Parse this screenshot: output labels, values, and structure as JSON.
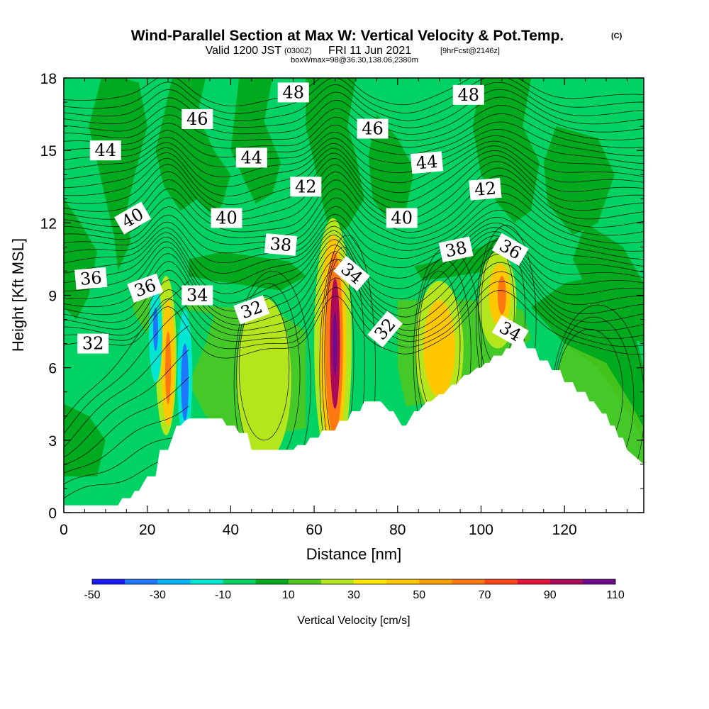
{
  "title": {
    "main": "Wind-Parallel Section at Max W: Vertical Velocity & Pot.Temp.",
    "copyright": "(C)",
    "valid_prefix": "Valid 1200 JST",
    "utc": "(0300Z)",
    "valid_date": "FRI 11 Jun 2021",
    "forecast": "[9hrFcst@2146z]",
    "boxwmax": "boxWmax=98@36.30,138.06,2380m"
  },
  "chart_data": {
    "type": "heatmap",
    "xlabel": "Distance [nm]",
    "ylabel": "Height [Kft MSL]",
    "xlim": [
      0,
      139
    ],
    "ylim": [
      0,
      18
    ],
    "x_ticks": [
      0,
      20,
      40,
      60,
      80,
      100,
      120
    ],
    "y_ticks": [
      0,
      3,
      6,
      9,
      12,
      15,
      18
    ],
    "terrain": {
      "x": [
        0,
        13,
        14,
        16,
        17,
        18,
        19,
        20,
        22,
        23,
        25,
        26,
        27,
        28,
        29,
        30,
        32,
        35,
        38,
        39,
        41,
        42,
        44,
        45,
        47,
        48,
        50,
        52,
        54,
        55,
        56,
        58,
        59,
        61,
        62,
        65,
        66,
        68,
        69,
        71,
        72,
        75,
        76,
        78,
        79,
        81,
        82,
        84,
        85,
        87,
        88,
        90,
        91,
        93,
        94,
        96,
        97,
        99,
        100,
        101,
        102,
        103,
        105,
        106,
        107,
        108,
        110,
        111,
        113,
        114,
        116,
        117,
        119,
        120,
        122,
        123,
        125,
        126,
        127,
        129,
        130,
        131,
        132,
        133,
        134,
        135,
        139
      ],
      "height_kft": [
        0.3,
        0.3,
        0.6,
        0.6,
        0.9,
        0.9,
        1.2,
        1.5,
        1.5,
        2.6,
        2.6,
        3.1,
        3.6,
        3.6,
        3.8,
        3.9,
        3.9,
        3.9,
        3.9,
        3.6,
        3.6,
        3.3,
        3.3,
        2.6,
        2.6,
        2.6,
        2.6,
        2.6,
        2.6,
        2.6,
        2.8,
        2.8,
        3.1,
        3.1,
        3.4,
        3.4,
        3.8,
        3.8,
        4.2,
        4.2,
        4.6,
        4.6,
        4.6,
        4.2,
        4.2,
        3.6,
        3.6,
        4.2,
        4.2,
        4.6,
        4.6,
        4.9,
        4.9,
        5.3,
        5.3,
        5.7,
        5.7,
        6.0,
        6.0,
        6.2,
        6.2,
        6.5,
        6.5,
        6.8,
        6.8,
        7.2,
        7.2,
        6.8,
        6.8,
        6.3,
        6.3,
        5.9,
        5.9,
        5.4,
        5.4,
        5.0,
        5.0,
        4.6,
        4.6,
        4.1,
        4.1,
        3.6,
        3.6,
        3.1,
        3.1,
        2.6,
        2.0
      ]
    },
    "velocity_cells": [
      {
        "x": 24.5,
        "y": 6.5,
        "rx": 2.5,
        "ry": 3.3,
        "w": 25
      },
      {
        "x": 25,
        "y": 6.2,
        "rx": 1.6,
        "ry": 2.6,
        "w": 45
      },
      {
        "x": 25,
        "y": 6.0,
        "rx": 0.7,
        "ry": 1.5,
        "w": 65
      },
      {
        "x": 29,
        "y": 5.7,
        "rx": 1.8,
        "ry": 2.7,
        "w": -20
      },
      {
        "x": 29,
        "y": 5.4,
        "rx": 0.9,
        "ry": 1.6,
        "w": -40
      },
      {
        "x": 22,
        "y": 7.4,
        "rx": 1.6,
        "ry": 2.0,
        "w": -20
      },
      {
        "x": 22,
        "y": 7.6,
        "rx": 0.6,
        "ry": 0.9,
        "w": -40
      },
      {
        "x": 48,
        "y": 5.5,
        "rx": 6.5,
        "ry": 3.4,
        "w": 25
      },
      {
        "x": 64.5,
        "y": 7.0,
        "rx": 4.5,
        "ry": 5.2,
        "w": 25
      },
      {
        "x": 64.5,
        "y": 7.0,
        "rx": 3.2,
        "ry": 4.5,
        "w": 45
      },
      {
        "x": 64.8,
        "y": 7.0,
        "rx": 2.1,
        "ry": 3.8,
        "w": 65
      },
      {
        "x": 65,
        "y": 7.0,
        "rx": 1.2,
        "ry": 2.7,
        "w": 90
      },
      {
        "x": 65,
        "y": 7.0,
        "rx": 0.5,
        "ry": 1.3,
        "w": 105
      },
      {
        "x": 90,
        "y": 6.8,
        "rx": 5.8,
        "ry": 2.8,
        "w": 25
      },
      {
        "x": 90,
        "y": 6.8,
        "rx": 3.8,
        "ry": 2.0,
        "w": 45
      },
      {
        "x": 104,
        "y": 8.8,
        "rx": 4.5,
        "ry": 2.0,
        "w": 25
      },
      {
        "x": 104.5,
        "y": 9.0,
        "rx": 2.6,
        "ry": 1.3,
        "w": 45
      },
      {
        "x": 105,
        "y": 9.0,
        "rx": 1.0,
        "ry": 0.8,
        "w": 65
      }
    ],
    "theta_contours": [
      {
        "level": 32,
        "label": "32",
        "label_x": 7,
        "label_y": 7.0,
        "label_angle": 0
      },
      {
        "level": 32,
        "label": "32",
        "label_x": 45,
        "label_y": 8.4,
        "label_angle": -20
      },
      {
        "level": 32,
        "label": "32",
        "label_x": 77,
        "label_y": 7.6,
        "label_angle": -50
      },
      {
        "level": 34,
        "label": "34",
        "label_x": 32,
        "label_y": 9.0,
        "label_angle": 0
      },
      {
        "level": 34,
        "label": "34",
        "label_x": 69,
        "label_y": 9.9,
        "label_angle": 40
      },
      {
        "level": 34,
        "label": "34",
        "label_x": 107,
        "label_y": 7.5,
        "label_angle": 30
      },
      {
        "level": 36,
        "label": "36",
        "label_x": 6.5,
        "label_y": 9.7,
        "label_angle": -5
      },
      {
        "level": 36,
        "label": "36",
        "label_x": 19.5,
        "label_y": 9.3,
        "label_angle": -20
      },
      {
        "level": 36,
        "label": "36",
        "label_x": 107,
        "label_y": 10.9,
        "label_angle": 30
      },
      {
        "level": 38,
        "label": "38",
        "label_x": 52,
        "label_y": 11.1,
        "label_angle": 5
      },
      {
        "level": 38,
        "label": "38",
        "label_x": 94,
        "label_y": 10.9,
        "label_angle": -12
      },
      {
        "level": 40,
        "label": "40",
        "label_x": 16.5,
        "label_y": 12.2,
        "label_angle": -30
      },
      {
        "level": 40,
        "label": "40",
        "label_x": 39,
        "label_y": 12.2,
        "label_angle": 0
      },
      {
        "level": 40,
        "label": "40",
        "label_x": 81,
        "label_y": 12.2,
        "label_angle": 0
      },
      {
        "level": 42,
        "label": "42",
        "label_x": 58,
        "label_y": 13.5,
        "label_angle": 0
      },
      {
        "level": 42,
        "label": "42",
        "label_x": 101,
        "label_y": 13.4,
        "label_angle": -5
      },
      {
        "level": 44,
        "label": "44",
        "label_x": 10,
        "label_y": 15.0,
        "label_angle": 0
      },
      {
        "level": 44,
        "label": "44",
        "label_x": 45,
        "label_y": 14.7,
        "label_angle": 0
      },
      {
        "level": 44,
        "label": "44",
        "label_x": 87,
        "label_y": 14.5,
        "label_angle": -5
      },
      {
        "level": 46,
        "label": "46",
        "label_x": 32,
        "label_y": 16.3,
        "label_angle": 0
      },
      {
        "level": 46,
        "label": "46",
        "label_x": 74,
        "label_y": 15.9,
        "label_angle": 0
      },
      {
        "level": 48,
        "label": "48",
        "label_x": 55,
        "label_y": 17.4,
        "label_angle": 0
      },
      {
        "level": 48,
        "label": "48",
        "label_x": 97,
        "label_y": 17.3,
        "label_angle": 0
      }
    ],
    "colorbar": {
      "title": "Vertical Velocity [cm/s]",
      "bounds": [
        -50,
        -40,
        -30,
        -20,
        -10,
        0,
        10,
        20,
        30,
        40,
        50,
        60,
        70,
        80,
        90,
        100,
        110
      ],
      "colors": [
        "#1a1aff",
        "#1e78ff",
        "#00b4ff",
        "#00e6d2",
        "#00d264",
        "#00aa1e",
        "#50c81e",
        "#b4e61e",
        "#ffe600",
        "#ffc800",
        "#ffa000",
        "#ff7814",
        "#ff4614",
        "#e6143c",
        "#aa0a5a",
        "#6e0a8c"
      ],
      "tick_labels": [
        "-50",
        "-30",
        "-10",
        "10",
        "30",
        "50",
        "70",
        "90",
        "110"
      ],
      "tick_values": [
        -50,
        -30,
        -10,
        10,
        30,
        50,
        70,
        90,
        110
      ]
    }
  }
}
